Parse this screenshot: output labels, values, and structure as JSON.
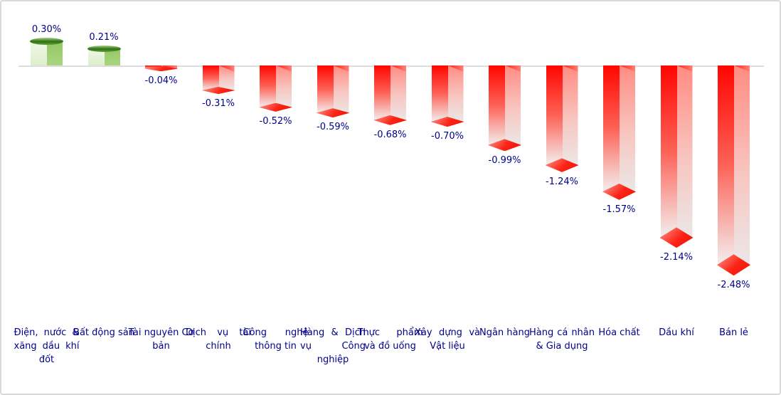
{
  "chart_data": {
    "type": "bar",
    "title": "",
    "orientation": "vertical-3d",
    "unit": "%",
    "categories": [
      "Điện, nước & xăng dầu khí đốt",
      "Bất động sản",
      "Tài nguyên Cơ bản",
      "Dịch vụ tài chính",
      "Công nghệ thông tin",
      "Hàng & Dịch vụ Công nghiệp",
      "Thực phẩm và đồ uống",
      "Xây dựng và Vật liệu",
      "Ngân hàng",
      "Hàng cá nhân & Gia dụng",
      "Hóa chất",
      "Dầu khí",
      "Bán lẻ"
    ],
    "values": [
      0.3,
      0.21,
      -0.04,
      -0.31,
      -0.52,
      -0.59,
      -0.68,
      -0.7,
      -0.99,
      -1.24,
      -1.57,
      -2.14,
      -2.48
    ],
    "value_labels": [
      "0.30%",
      "0.21%",
      "-0.04%",
      "-0.31%",
      "-0.52%",
      "-0.59%",
      "-0.68%",
      "-0.70%",
      "-0.99%",
      "-1.24%",
      "-1.57%",
      "-2.14%",
      "-2.48%"
    ],
    "xlabel": "",
    "ylabel": "",
    "ylim": [
      -2.7,
      0.5
    ],
    "baseline": 0,
    "grid": false,
    "legend": "none",
    "colors": {
      "positive_bar": "#9fcf77",
      "positive_cap": "#2f6f13",
      "negative_bar": "#ff0600",
      "negative_cap": "#fc2416",
      "label_text": "#00008b",
      "axis_line": "#dedede",
      "frame_border": "#d9d9d9",
      "background": "#ffffff"
    }
  }
}
